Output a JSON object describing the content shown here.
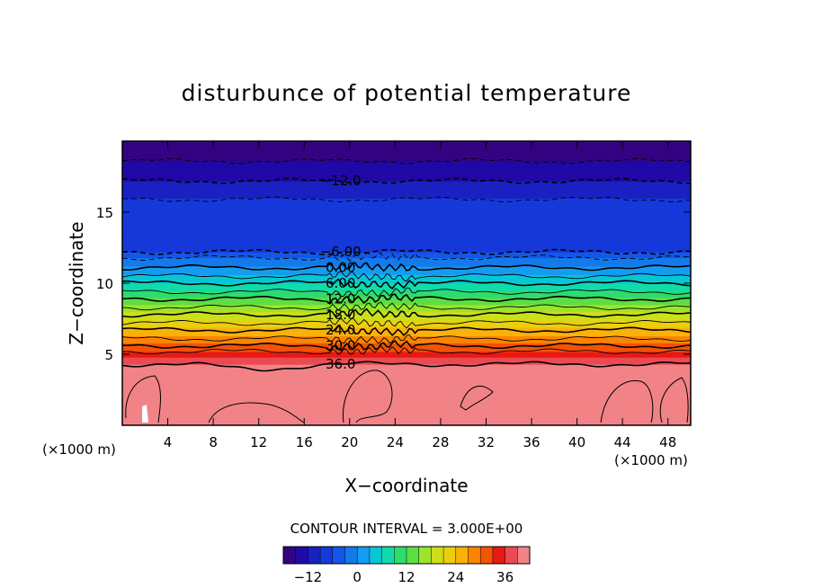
{
  "chart_data": {
    "type": "heatmap",
    "title": "disturbunce of potential temperature",
    "xlabel": "X−coordinate",
    "ylabel": "Z−coordinate",
    "x_unit_left": "(×1000 m)",
    "x_unit_right": "(×1000 m)",
    "xlim": [
      0,
      50
    ],
    "ylim": [
      0,
      20
    ],
    "x_ticks": [
      4,
      8,
      12,
      16,
      20,
      24,
      28,
      32,
      36,
      40,
      44,
      48
    ],
    "x_tick_labels": [
      "4",
      "8",
      "12",
      "16",
      "20",
      "24",
      "28",
      "32",
      "36",
      "40",
      "44",
      "48"
    ],
    "y_ticks": [
      5,
      10,
      15
    ],
    "y_tick_labels": [
      "5",
      "10",
      "15"
    ],
    "contour_interval_text": "CONTOUR INTERVAL = 3.000E+00",
    "contour_interval": 3.0,
    "field_profile": {
      "z": [
        0,
        2,
        4.3,
        5.2,
        6.3,
        8,
        10,
        11.2,
        11.8,
        12.2,
        14,
        16,
        17.2,
        18.6,
        20
      ],
      "value": [
        40,
        40,
        39,
        33,
        27,
        18,
        6,
        0,
        -3,
        -6,
        -8,
        -9,
        -12,
        -15,
        -18
      ]
    },
    "contour_lines": [
      {
        "level": -15,
        "z": 18.6,
        "dashed": true
      },
      {
        "level": -12,
        "z": 17.2,
        "dashed": true,
        "label": "−12.0"
      },
      {
        "level": -9,
        "z": 15.9,
        "dashed": true
      },
      {
        "level": -6,
        "z": 12.2,
        "dashed": true,
        "label": "−6.00"
      },
      {
        "level": -3,
        "z": 11.8,
        "dashed": true
      },
      {
        "level": 0,
        "z": 11.1,
        "dashed": false,
        "label": "0.00"
      },
      {
        "level": 3,
        "z": 10.5,
        "dashed": false
      },
      {
        "level": 6,
        "z": 10.0,
        "dashed": false,
        "label": "6.00"
      },
      {
        "level": 9,
        "z": 9.4,
        "dashed": false
      },
      {
        "level": 12,
        "z": 8.9,
        "dashed": false,
        "label": "12.0"
      },
      {
        "level": 15,
        "z": 8.3,
        "dashed": false
      },
      {
        "level": 18,
        "z": 7.8,
        "dashed": false,
        "label": "18.0"
      },
      {
        "level": 21,
        "z": 7.2,
        "dashed": false
      },
      {
        "level": 24,
        "z": 6.7,
        "dashed": false,
        "label": "24.0"
      },
      {
        "level": 27,
        "z": 6.1,
        "dashed": false
      },
      {
        "level": 30,
        "z": 5.6,
        "dashed": false,
        "label": "30.0"
      },
      {
        "level": 33,
        "z": 5.2,
        "dashed": false
      },
      {
        "level": 36,
        "z": 4.3,
        "dashed": false,
        "label": "36.0"
      }
    ],
    "colorbar": {
      "min": -18,
      "max": 42,
      "ticks": [
        -12,
        0,
        12,
        24,
        36
      ],
      "tick_labels": [
        "−12",
        "0",
        "12",
        "24",
        "36"
      ]
    },
    "grid": false
  }
}
